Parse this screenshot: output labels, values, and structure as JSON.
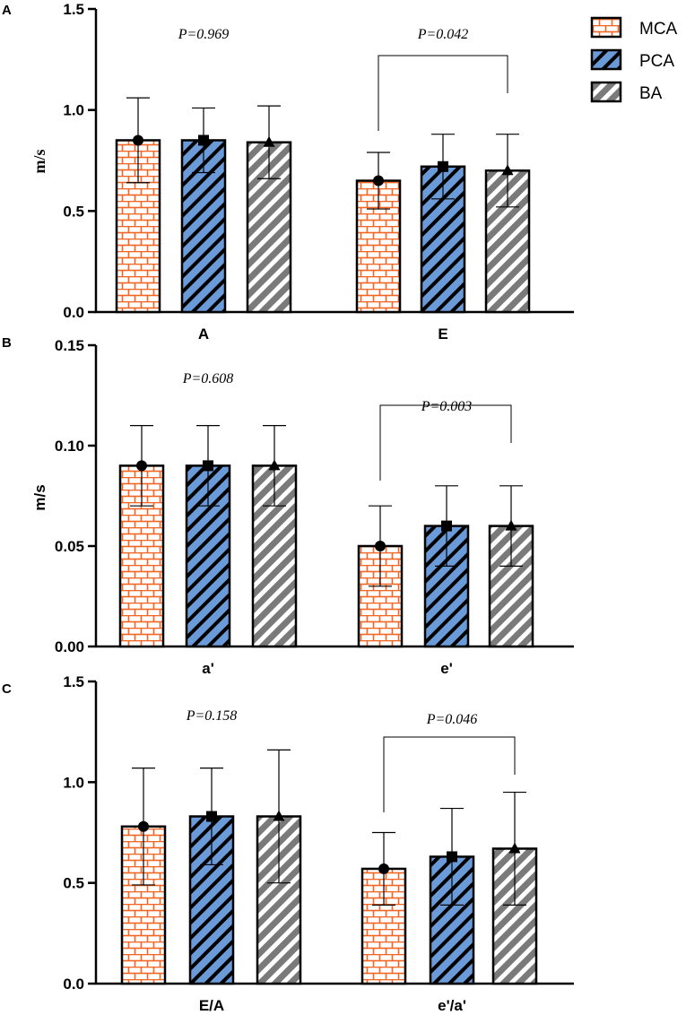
{
  "colors": {
    "mca_fill": "#ffffff",
    "mca_pattern": "#f26522",
    "pca_fill": "#6a9ad8",
    "pca_pattern": "#000000",
    "ba_fill": "#7a7a7a",
    "ba_pattern": "#ffffff",
    "axis": "#000000"
  },
  "legend": {
    "items": [
      {
        "name": "MCA",
        "pattern": "brick-icon"
      },
      {
        "name": "PCA",
        "pattern": "hatch-icon"
      },
      {
        "name": "BA",
        "pattern": "stripe-icon"
      }
    ]
  },
  "chart_data": [
    {
      "panel": "A",
      "type": "bar",
      "ylabel": "m/s",
      "ylim": [
        0,
        1.5
      ],
      "yticks": [
        "0.0",
        "0.5",
        "1.0",
        "1.5"
      ],
      "ytick_values": [
        0,
        0.5,
        1.0,
        1.5
      ],
      "categories": [
        "A",
        "E"
      ],
      "series": [
        {
          "name": "MCA",
          "values": [
            0.85,
            0.65
          ],
          "errors": [
            0.21,
            0.14
          ],
          "marker": "circle"
        },
        {
          "name": "PCA",
          "values": [
            0.85,
            0.72
          ],
          "errors": [
            0.16,
            0.16
          ],
          "marker": "square"
        },
        {
          "name": "BA",
          "values": [
            0.84,
            0.7
          ],
          "errors": [
            0.18,
            0.18
          ],
          "marker": "triangle"
        }
      ],
      "p_values": [
        "P=0.969",
        "P=0.042"
      ],
      "bracket": [
        false,
        true
      ]
    },
    {
      "panel": "B",
      "type": "bar",
      "ylabel": "m/s",
      "ylim": [
        0,
        0.15
      ],
      "yticks": [
        "0.00",
        "0.05",
        "0.10",
        "0.15"
      ],
      "ytick_values": [
        0,
        0.05,
        0.1,
        0.15
      ],
      "categories": [
        "a'",
        "e'"
      ],
      "series": [
        {
          "name": "MCA",
          "values": [
            0.09,
            0.05
          ],
          "errors": [
            0.02,
            0.02
          ],
          "marker": "circle"
        },
        {
          "name": "PCA",
          "values": [
            0.09,
            0.06
          ],
          "errors": [
            0.02,
            0.02
          ],
          "marker": "square"
        },
        {
          "name": "BA",
          "values": [
            0.09,
            0.06
          ],
          "errors": [
            0.02,
            0.02
          ],
          "marker": "triangle"
        }
      ],
      "p_values": [
        "P=0.608",
        "P=0.003"
      ],
      "bracket": [
        false,
        true
      ]
    },
    {
      "panel": "C",
      "type": "bar",
      "ylabel": "",
      "ylim": [
        0,
        1.5
      ],
      "yticks": [
        "0.0",
        "0.5",
        "1.0",
        "1.5"
      ],
      "ytick_values": [
        0,
        0.5,
        1.0,
        1.5
      ],
      "categories": [
        "E/A",
        "e'/a'"
      ],
      "series": [
        {
          "name": "MCA",
          "values": [
            0.78,
            0.57
          ],
          "errors": [
            0.29,
            0.18
          ],
          "marker": "circle"
        },
        {
          "name": "PCA",
          "values": [
            0.83,
            0.63
          ],
          "errors": [
            0.24,
            0.24
          ],
          "marker": "square"
        },
        {
          "name": "BA",
          "values": [
            0.83,
            0.67
          ],
          "errors": [
            0.33,
            0.28
          ],
          "marker": "triangle"
        }
      ],
      "p_values": [
        "P=0.158",
        "P=0.046"
      ],
      "bracket": [
        false,
        true
      ]
    }
  ]
}
